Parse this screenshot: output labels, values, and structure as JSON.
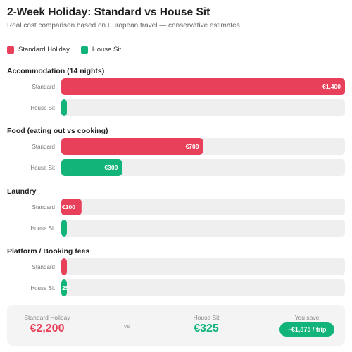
{
  "header": {
    "title": "2-Week Holiday: Standard vs House Sit",
    "subtitle": "Real cost comparison based on European travel — conservative estimates"
  },
  "colors": {
    "standard": "#e8405a",
    "house_sit": "#13b47a",
    "track": "#efefef"
  },
  "legend": [
    {
      "label": "Standard Holiday",
      "color": "#e8405a"
    },
    {
      "label": "House Sit",
      "color": "#13b47a"
    }
  ],
  "chart_data": {
    "type": "bar",
    "orientation": "horizontal",
    "xlim": [
      0,
      1400
    ],
    "grid": false,
    "legend_placement": "top-left",
    "groups": [
      {
        "title": "Accommodation (14 nights)",
        "rows": [
          {
            "label": "Standard",
            "series": "Standard Holiday",
            "value": 1400,
            "value_label": "€1,400"
          },
          {
            "label": "House Sit",
            "series": "House Sit",
            "value": 0,
            "value_label": ""
          }
        ]
      },
      {
        "title": "Food (eating out vs cooking)",
        "rows": [
          {
            "label": "Standard",
            "series": "Standard Holiday",
            "value": 700,
            "value_label": "€700"
          },
          {
            "label": "House Sit",
            "series": "House Sit",
            "value": 300,
            "value_label": "€300"
          }
        ]
      },
      {
        "title": "Laundry",
        "rows": [
          {
            "label": "Standard",
            "series": "Standard Holiday",
            "value": 100,
            "value_label": "€100"
          },
          {
            "label": "House Sit",
            "series": "House Sit",
            "value": 0,
            "value_label": ""
          }
        ]
      },
      {
        "title": "Platform / Booking fees",
        "rows": [
          {
            "label": "Standard",
            "series": "Standard Holiday",
            "value": 0,
            "value_label": ""
          },
          {
            "label": "House Sit",
            "series": "House Sit",
            "value": 25,
            "value_label": "25*"
          }
        ]
      }
    ]
  },
  "summary": {
    "standard_label": "Standard Holiday",
    "standard_value": "€2,200",
    "vs": "vs",
    "house_label": "House Sit",
    "house_value": "€325",
    "save_label": "You save",
    "save_value": "~€1,875 / trip"
  }
}
